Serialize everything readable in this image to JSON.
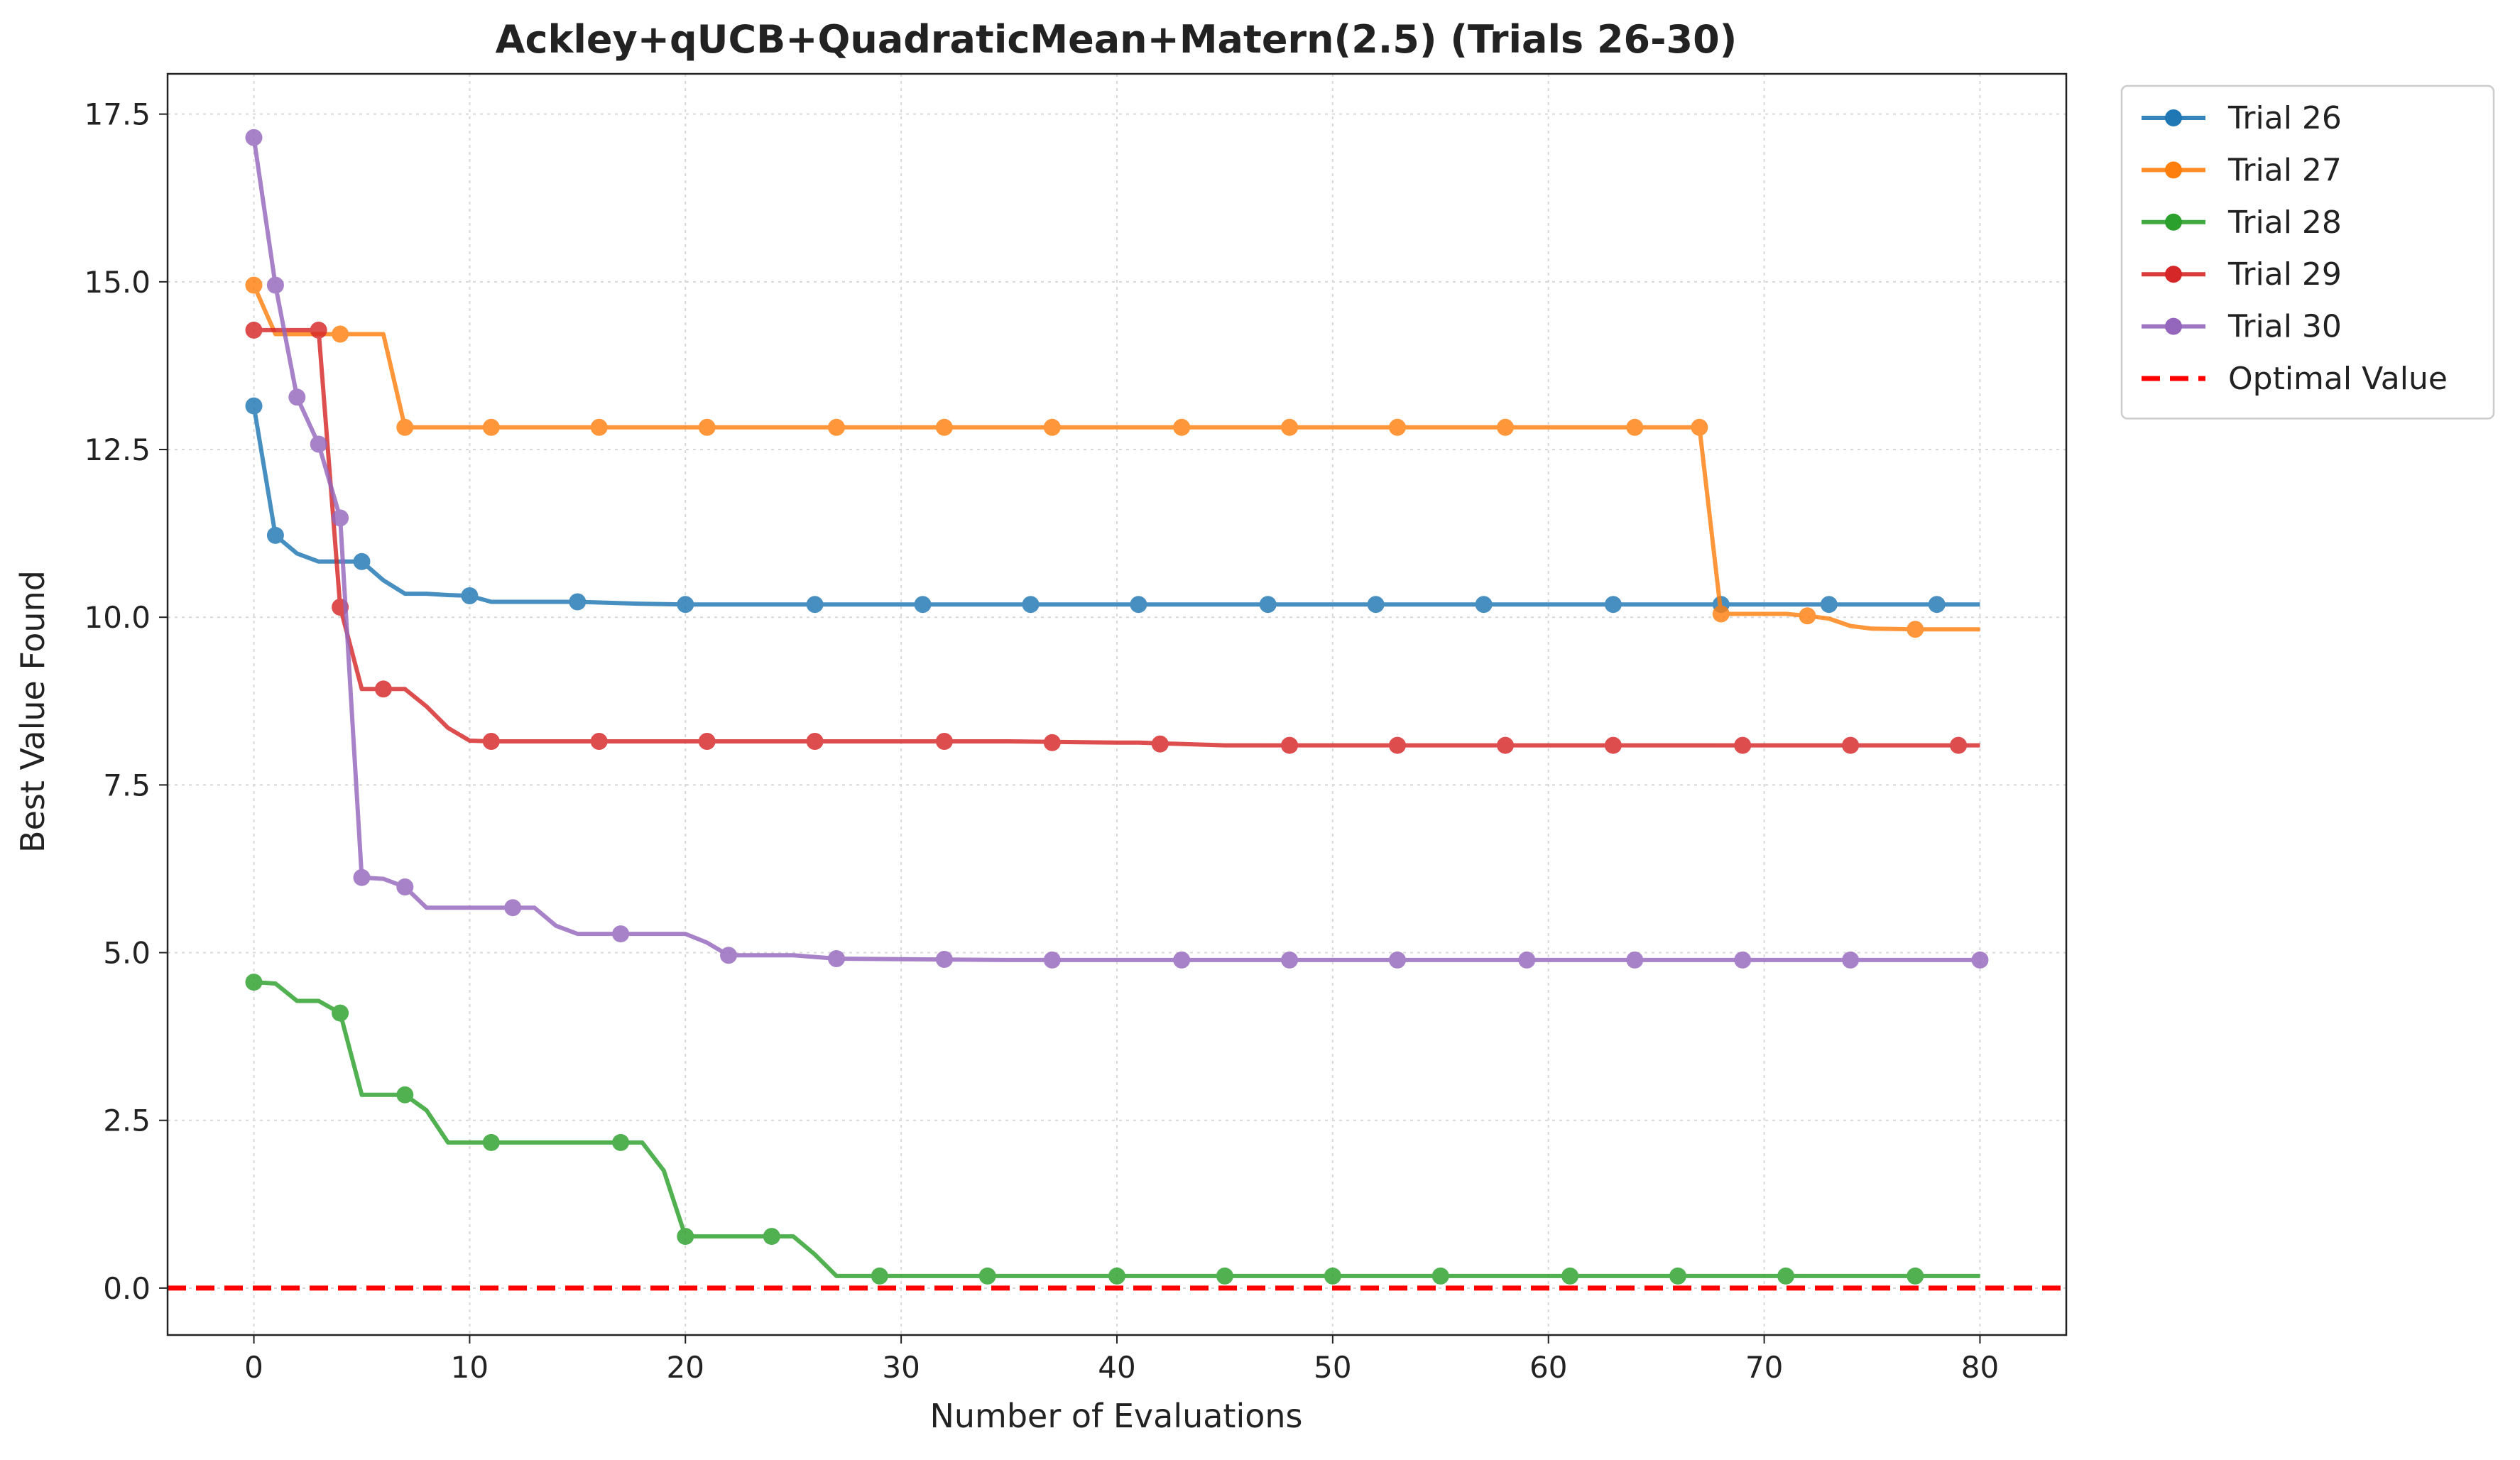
{
  "chart_data": {
    "type": "line",
    "title": "Ackley+qUCB+QuadraticMean+Matern(2.5) (Trials 26-30)",
    "xlabel": "Number of Evaluations",
    "ylabel": "Best Value Found",
    "xlim": [
      -4,
      84
    ],
    "ylim": [
      -0.7,
      18.1
    ],
    "xticks": [
      0,
      10,
      20,
      30,
      40,
      50,
      60,
      70,
      80
    ],
    "yticks": [
      0.0,
      2.5,
      5.0,
      7.5,
      10.0,
      12.5,
      15.0,
      17.5
    ],
    "xtick_labels": [
      "0",
      "10",
      "20",
      "30",
      "40",
      "50",
      "60",
      "70",
      "80"
    ],
    "ytick_labels": [
      "0.0",
      "2.5",
      "5.0",
      "7.5",
      "10.0",
      "12.5",
      "15.0",
      "17.5"
    ],
    "grid": true,
    "legend_position": "outside-top-right",
    "series": [
      {
        "name": "Trial 26",
        "color": "#1f77b4",
        "line": [
          [
            0,
            13.15
          ],
          [
            1,
            11.22
          ],
          [
            2,
            10.95
          ],
          [
            3,
            10.83
          ],
          [
            4,
            10.83
          ],
          [
            5,
            10.83
          ],
          [
            6,
            10.55
          ],
          [
            7,
            10.35
          ],
          [
            8,
            10.35
          ],
          [
            9,
            10.33
          ],
          [
            10,
            10.32
          ],
          [
            11,
            10.23
          ],
          [
            15,
            10.23
          ],
          [
            18,
            10.2
          ],
          [
            20,
            10.19
          ],
          [
            80,
            10.19
          ]
        ],
        "markers": [
          [
            0,
            13.15
          ],
          [
            1,
            11.22
          ],
          [
            5,
            10.83
          ],
          [
            10,
            10.32
          ],
          [
            15,
            10.23
          ],
          [
            20,
            10.19
          ],
          [
            26,
            10.19
          ],
          [
            31,
            10.19
          ],
          [
            36,
            10.19
          ],
          [
            41,
            10.19
          ],
          [
            47,
            10.19
          ],
          [
            52,
            10.19
          ],
          [
            57,
            10.19
          ],
          [
            63,
            10.19
          ],
          [
            68,
            10.19
          ],
          [
            73,
            10.19
          ],
          [
            78,
            10.19
          ]
        ]
      },
      {
        "name": "Trial 27",
        "color": "#ff7f0e",
        "line": [
          [
            0,
            14.95
          ],
          [
            1,
            14.22
          ],
          [
            4,
            14.22
          ],
          [
            6,
            14.22
          ],
          [
            7,
            12.83
          ],
          [
            67,
            12.83
          ],
          [
            68,
            10.05
          ],
          [
            71,
            10.05
          ],
          [
            72,
            10.02
          ],
          [
            73,
            9.98
          ],
          [
            74,
            9.87
          ],
          [
            75,
            9.83
          ],
          [
            77,
            9.82
          ],
          [
            80,
            9.82
          ]
        ],
        "markers": [
          [
            0,
            14.95
          ],
          [
            4,
            14.22
          ],
          [
            7,
            12.83
          ],
          [
            11,
            12.83
          ],
          [
            16,
            12.83
          ],
          [
            21,
            12.83
          ],
          [
            27,
            12.83
          ],
          [
            32,
            12.83
          ],
          [
            37,
            12.83
          ],
          [
            43,
            12.83
          ],
          [
            48,
            12.83
          ],
          [
            53,
            12.83
          ],
          [
            58,
            12.83
          ],
          [
            64,
            12.83
          ],
          [
            67,
            12.83
          ],
          [
            68,
            10.05
          ],
          [
            72,
            10.02
          ],
          [
            77,
            9.82
          ]
        ]
      },
      {
        "name": "Trial 28",
        "color": "#2ca02c",
        "line": [
          [
            0,
            4.56
          ],
          [
            1,
            4.54
          ],
          [
            2,
            4.28
          ],
          [
            3,
            4.28
          ],
          [
            4,
            4.1
          ],
          [
            5,
            2.88
          ],
          [
            7,
            2.88
          ],
          [
            8,
            2.65
          ],
          [
            9,
            2.17
          ],
          [
            17,
            2.17
          ],
          [
            18,
            2.17
          ],
          [
            19,
            1.75
          ],
          [
            20,
            0.77
          ],
          [
            24,
            0.77
          ],
          [
            25,
            0.77
          ],
          [
            26,
            0.5
          ],
          [
            27,
            0.18
          ],
          [
            80,
            0.18
          ]
        ],
        "markers": [
          [
            0,
            4.56
          ],
          [
            4,
            4.1
          ],
          [
            7,
            2.88
          ],
          [
            11,
            2.17
          ],
          [
            17,
            2.17
          ],
          [
            20,
            0.77
          ],
          [
            24,
            0.77
          ],
          [
            29,
            0.18
          ],
          [
            34,
            0.18
          ],
          [
            40,
            0.18
          ],
          [
            45,
            0.18
          ],
          [
            50,
            0.18
          ],
          [
            55,
            0.18
          ],
          [
            61,
            0.18
          ],
          [
            66,
            0.18
          ],
          [
            71,
            0.18
          ],
          [
            77,
            0.18
          ]
        ]
      },
      {
        "name": "Trial 29",
        "color": "#d62728",
        "line": [
          [
            0,
            14.28
          ],
          [
            3,
            14.28
          ],
          [
            4,
            10.15
          ],
          [
            5,
            8.93
          ],
          [
            7,
            8.93
          ],
          [
            8,
            8.67
          ],
          [
            9,
            8.35
          ],
          [
            10,
            8.16
          ],
          [
            11,
            8.15
          ],
          [
            35,
            8.15
          ],
          [
            40,
            8.13
          ],
          [
            41,
            8.13
          ],
          [
            45,
            8.09
          ],
          [
            80,
            8.09
          ]
        ],
        "markers": [
          [
            0,
            14.28
          ],
          [
            3,
            14.28
          ],
          [
            4,
            10.15
          ],
          [
            6,
            8.93
          ],
          [
            11,
            8.15
          ],
          [
            16,
            8.15
          ],
          [
            21,
            8.15
          ],
          [
            26,
            8.15
          ],
          [
            32,
            8.15
          ],
          [
            37,
            8.13
          ],
          [
            42,
            8.11
          ],
          [
            48,
            8.09
          ],
          [
            53,
            8.09
          ],
          [
            58,
            8.09
          ],
          [
            63,
            8.09
          ],
          [
            69,
            8.09
          ],
          [
            74,
            8.09
          ],
          [
            79,
            8.09
          ]
        ]
      },
      {
        "name": "Trial 30",
        "color": "#9467bd",
        "line": [
          [
            0,
            17.15
          ],
          [
            1,
            14.95
          ],
          [
            2,
            13.28
          ],
          [
            3,
            12.58
          ],
          [
            4,
            11.48
          ],
          [
            5,
            6.12
          ],
          [
            6,
            6.1
          ],
          [
            7,
            5.98
          ],
          [
            8,
            5.67
          ],
          [
            12,
            5.67
          ],
          [
            13,
            5.67
          ],
          [
            14,
            5.4
          ],
          [
            15,
            5.28
          ],
          [
            20,
            5.28
          ],
          [
            21,
            5.15
          ],
          [
            22,
            4.96
          ],
          [
            25,
            4.96
          ],
          [
            27,
            4.91
          ],
          [
            35,
            4.89
          ],
          [
            80,
            4.89
          ]
        ],
        "markers": [
          [
            0,
            17.15
          ],
          [
            1,
            14.95
          ],
          [
            2,
            13.28
          ],
          [
            3,
            12.58
          ],
          [
            4,
            11.48
          ],
          [
            5,
            6.12
          ],
          [
            7,
            5.98
          ],
          [
            12,
            5.67
          ],
          [
            17,
            5.28
          ],
          [
            22,
            4.96
          ],
          [
            27,
            4.91
          ],
          [
            32,
            4.9
          ],
          [
            37,
            4.89
          ],
          [
            43,
            4.89
          ],
          [
            48,
            4.89
          ],
          [
            53,
            4.89
          ],
          [
            59,
            4.89
          ],
          [
            64,
            4.89
          ],
          [
            69,
            4.89
          ],
          [
            74,
            4.89
          ],
          [
            80,
            4.89
          ]
        ]
      }
    ],
    "reference_line": {
      "name": "Optimal Value",
      "y": 0.0,
      "color": "#ff0000",
      "style": "dashed"
    }
  }
}
